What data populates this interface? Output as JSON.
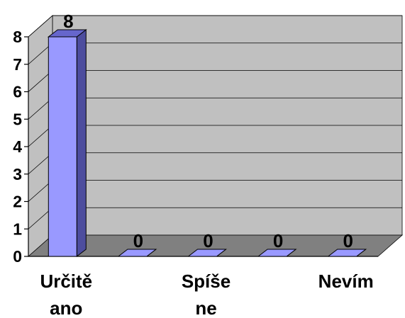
{
  "chart_data": {
    "type": "bar",
    "categories": [
      "Určitě ano",
      "",
      "Spíše ne",
      "",
      "Nevím"
    ],
    "category_label_lines": [
      [
        "Určitě",
        "ano"
      ],
      [],
      [
        "Spíše",
        "ne"
      ],
      [],
      [
        "Nevím"
      ]
    ],
    "values": [
      8,
      0,
      0,
      0,
      0
    ],
    "data_labels": [
      "8",
      "0",
      "0",
      "0",
      "0"
    ],
    "y_ticks": [
      "0",
      "1",
      "2",
      "3",
      "4",
      "5",
      "6",
      "7",
      "8"
    ],
    "ylim": [
      0,
      8
    ],
    "grid": true,
    "legend": "none",
    "style": "3d",
    "colors": {
      "bar_front": "#9999FF",
      "bar_side": "#4D4D9E",
      "bar_top": "#6666CC",
      "wall": "#C0C0C0",
      "floor": "#808080",
      "grid": "#000000"
    }
  }
}
